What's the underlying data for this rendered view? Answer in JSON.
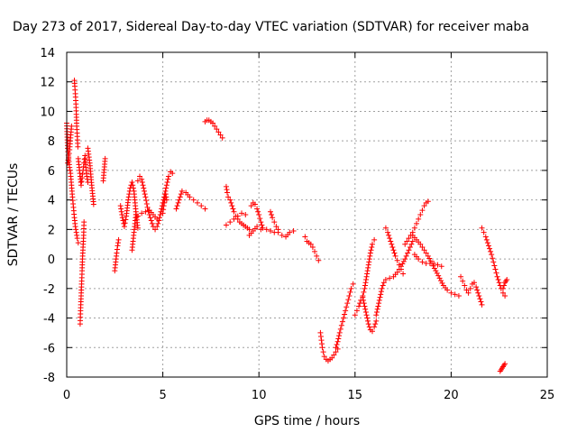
{
  "chart_data": {
    "type": "scatter",
    "title": "Day 273 of 2017, Sidereal Day-to-day VTEC variation (SDTVAR) for receiver maba",
    "xlabel": "GPS time / hours",
    "ylabel": "SDTVAR / TECUs",
    "xlim": [
      0,
      25
    ],
    "ylim": [
      -8,
      14
    ],
    "xticks": [
      0,
      5,
      10,
      15,
      20,
      25
    ],
    "yticks": [
      -8,
      -6,
      -4,
      -2,
      0,
      2,
      4,
      6,
      8,
      10,
      12,
      14
    ],
    "grid": true,
    "marker": "+",
    "color": "#ff0000",
    "series": [
      {
        "name": "SDTVAR",
        "segments": [
          {
            "x": [
              0.0,
              0.05,
              0.1,
              0.15,
              0.2,
              0.25,
              0.3,
              0.35,
              0.4,
              0.45,
              0.5,
              0.55,
              0.6
            ],
            "y": [
              9.2,
              7.5,
              6.8,
              6.2,
              5.8,
              5.0,
              4.2,
              3.5,
              2.8,
              2.2,
              1.8,
              1.4,
              1.1
            ]
          },
          {
            "x": [
              0.05,
              0.1,
              0.15,
              0.2,
              0.25
            ],
            "y": [
              6.5,
              6.9,
              7.4,
              8.2,
              9.0
            ]
          },
          {
            "x": [
              0.4,
              0.42,
              0.45,
              0.48,
              0.5,
              0.52,
              0.55,
              0.58
            ],
            "y": [
              12.1,
              11.7,
              11.2,
              10.5,
              9.8,
              9.0,
              8.3,
              7.6
            ]
          },
          {
            "x": [
              0.6,
              0.65,
              0.7,
              0.75,
              0.8,
              0.85,
              0.9,
              0.95,
              1.0,
              1.05,
              1.1
            ],
            "y": [
              6.8,
              6.2,
              5.6,
              5.0,
              5.5,
              6.0,
              6.5,
              7.0,
              6.2,
              5.6,
              5.2
            ]
          },
          {
            "x": [
              0.7,
              0.72,
              0.75,
              0.78,
              0.8,
              0.82,
              0.85,
              0.88,
              0.9
            ],
            "y": [
              -4.4,
              -3.5,
              -2.5,
              -1.5,
              -0.8,
              0.0,
              0.8,
              1.6,
              2.5
            ]
          },
          {
            "x": [
              1.1,
              1.2,
              1.3,
              1.4
            ],
            "y": [
              7.5,
              6.5,
              5.0,
              3.7
            ]
          },
          {
            "x": [
              1.9,
              2.0
            ],
            "y": [
              5.3,
              6.8
            ]
          },
          {
            "x": [
              2.5,
              2.55,
              2.6,
              2.65,
              2.7
            ],
            "y": [
              -0.8,
              -0.2,
              0.4,
              0.9,
              1.3
            ]
          },
          {
            "x": [
              2.8,
              2.9,
              3.0,
              3.1,
              3.2,
              3.3,
              3.4,
              3.5,
              3.6,
              3.7
            ],
            "y": [
              3.6,
              2.8,
              2.2,
              2.9,
              4.0,
              4.8,
              5.2,
              4.6,
              3.2,
              2.1
            ]
          },
          {
            "x": [
              3.4,
              3.45,
              3.5,
              3.55,
              3.6
            ],
            "y": [
              0.6,
              1.2,
              1.8,
              2.4,
              3.0
            ]
          },
          {
            "x": [
              3.7,
              3.8,
              3.9,
              4.0,
              4.1,
              4.2,
              4.3,
              4.4,
              4.5,
              4.6,
              4.7,
              4.8,
              4.9,
              5.0,
              5.1,
              5.2,
              5.3,
              5.4,
              5.5
            ],
            "y": [
              5.3,
              5.6,
              5.4,
              4.8,
              4.2,
              3.5,
              3.0,
              2.6,
              2.2,
              2.0,
              2.2,
              2.6,
              3.2,
              3.8,
              4.4,
              5.0,
              5.6,
              5.9,
              5.8
            ]
          },
          {
            "x": [
              3.7,
              3.9,
              4.1,
              4.3,
              4.5,
              4.7
            ],
            "y": [
              2.9,
              3.1,
              3.2,
              3.3,
              3.0,
              2.7
            ]
          },
          {
            "x": [
              5.0,
              5.05,
              5.1,
              5.15,
              5.2
            ],
            "y": [
              3.1,
              3.6,
              4.0,
              4.4,
              4.0
            ]
          },
          {
            "x": [
              5.7,
              5.8,
              5.9,
              6.0,
              6.2,
              6.4,
              6.6,
              6.8,
              7.0,
              7.2
            ],
            "y": [
              3.4,
              3.8,
              4.2,
              4.6,
              4.5,
              4.2,
              4.0,
              3.8,
              3.6,
              3.4
            ]
          },
          {
            "x": [
              7.2,
              7.3,
              7.4,
              7.5,
              7.6,
              7.7,
              7.8,
              7.9,
              8.0,
              8.1
            ],
            "y": [
              9.3,
              9.4,
              9.4,
              9.3,
              9.2,
              9.0,
              8.8,
              8.6,
              8.4,
              8.2
            ]
          },
          {
            "x": [
              8.3,
              8.35,
              8.4,
              8.5,
              8.6,
              8.7,
              8.8,
              8.9,
              9.0,
              9.1,
              9.2,
              9.3,
              9.4,
              9.5
            ],
            "y": [
              4.9,
              4.5,
              4.2,
              4.0,
              3.6,
              3.2,
              2.9,
              2.7,
              2.5,
              2.4,
              2.3,
              2.2,
              2.1,
              2.0
            ]
          },
          {
            "x": [
              8.3,
              8.5,
              8.7,
              8.9,
              9.1,
              9.3
            ],
            "y": [
              2.3,
              2.5,
              2.7,
              2.9,
              3.1,
              3.0
            ]
          },
          {
            "x": [
              9.6,
              9.7,
              9.8,
              9.9,
              10.0,
              10.1,
              10.2,
              10.4,
              10.6,
              10.8,
              11.0,
              11.2,
              11.4,
              11.6,
              11.8
            ],
            "y": [
              3.6,
              3.8,
              3.7,
              3.4,
              3.0,
              2.5,
              2.1,
              2.0,
              1.9,
              1.8,
              1.8,
              1.6,
              1.5,
              1.8,
              1.9
            ]
          },
          {
            "x": [
              9.5,
              9.7,
              9.9,
              10.1
            ],
            "y": [
              1.6,
              1.9,
              2.2,
              2.0
            ]
          },
          {
            "x": [
              10.6,
              10.7,
              10.8,
              10.9,
              11.0
            ],
            "y": [
              3.2,
              2.8,
              2.5,
              2.2,
              2.0
            ]
          },
          {
            "x": [
              12.4,
              12.5,
              12.6,
              12.7,
              12.8,
              12.9,
              13.0,
              13.1
            ],
            "y": [
              1.5,
              1.2,
              1.1,
              1.0,
              0.8,
              0.5,
              0.2,
              -0.1
            ]
          },
          {
            "x": [
              13.2,
              13.25,
              13.3,
              13.35,
              13.4,
              13.5,
              13.6,
              13.7,
              13.8,
              13.9,
              14.0,
              14.1
            ],
            "y": [
              -5.0,
              -5.5,
              -6.0,
              -6.3,
              -6.6,
              -6.8,
              -6.9,
              -6.8,
              -6.7,
              -6.5,
              -6.3,
              -6.1
            ]
          },
          {
            "x": [
              14.0,
              14.1,
              14.2,
              14.3,
              14.4,
              14.5,
              14.6,
              14.7,
              14.8,
              14.9
            ],
            "y": [
              -6.0,
              -5.6,
              -5.0,
              -4.5,
              -4.0,
              -3.5,
              -3.0,
              -2.5,
              -2.0,
              -1.7
            ]
          },
          {
            "x": [
              15.0,
              15.1,
              15.2,
              15.3,
              15.4,
              15.5,
              15.6,
              15.7,
              15.8,
              15.9,
              16.0,
              16.1
            ],
            "y": [
              -3.8,
              -3.5,
              -3.2,
              -2.8,
              -2.6,
              -3.2,
              -3.8,
              -4.4,
              -4.8,
              -4.9,
              -4.6,
              -4.2
            ]
          },
          {
            "x": [
              15.4,
              15.5,
              15.6,
              15.7,
              15.8,
              15.9,
              16.0
            ],
            "y": [
              -2.5,
              -2.0,
              -1.2,
              -0.4,
              0.4,
              1.0,
              1.3
            ]
          },
          {
            "x": [
              16.1,
              16.2,
              16.3,
              16.4,
              16.5,
              16.6,
              16.8,
              17.0,
              17.2,
              17.4,
              17.6,
              17.8,
              18.0
            ],
            "y": [
              -3.8,
              -3.2,
              -2.6,
              -2.0,
              -1.6,
              -1.4,
              -1.3,
              -1.2,
              -0.9,
              -0.5,
              0.0,
              0.6,
              1.2
            ]
          },
          {
            "x": [
              16.6,
              16.7,
              16.8,
              16.9,
              17.0,
              17.1,
              17.2,
              17.3,
              17.4,
              17.5
            ],
            "y": [
              2.1,
              1.8,
              1.4,
              1.0,
              0.6,
              0.2,
              -0.1,
              -0.4,
              -0.7,
              -1.0
            ]
          },
          {
            "x": [
              17.6,
              17.7,
              17.8,
              17.9,
              18.0,
              18.1,
              18.2,
              18.3,
              18.4,
              18.5,
              18.6,
              18.7,
              18.8
            ],
            "y": [
              1.0,
              1.2,
              1.4,
              1.6,
              1.8,
              2.1,
              2.4,
              2.7,
              3.0,
              3.3,
              3.6,
              3.8,
              3.9
            ]
          },
          {
            "x": [
              18.0,
              18.2,
              18.4,
              18.6,
              18.8,
              19.0,
              19.2,
              19.4,
              19.6,
              19.8,
              20.0,
              20.2,
              20.4
            ],
            "y": [
              1.6,
              1.3,
              1.0,
              0.6,
              0.2,
              -0.3,
              -0.8,
              -1.3,
              -1.8,
              -2.1,
              -2.3,
              -2.4,
              -2.5
            ]
          },
          {
            "x": [
              18.1,
              18.3,
              18.5,
              18.7,
              18.9,
              19.1,
              19.3,
              19.5
            ],
            "y": [
              0.3,
              0.0,
              -0.2,
              -0.3,
              -0.3,
              -0.3,
              -0.4,
              -0.5
            ]
          },
          {
            "x": [
              20.5,
              20.6,
              20.7,
              20.8,
              20.9,
              21.0,
              21.1,
              21.2,
              21.3,
              21.4,
              21.5,
              21.6
            ],
            "y": [
              -1.2,
              -1.5,
              -1.8,
              -2.1,
              -2.3,
              -2.0,
              -1.7,
              -1.6,
              -1.9,
              -2.3,
              -2.7,
              -3.1
            ]
          },
          {
            "x": [
              21.6,
              21.7,
              21.8,
              21.9,
              22.0,
              22.1,
              22.2,
              22.3,
              22.4,
              22.5,
              22.6,
              22.7,
              22.8
            ],
            "y": [
              2.1,
              1.8,
              1.5,
              1.1,
              0.7,
              0.3,
              -0.2,
              -0.7,
              -1.2,
              -1.6,
              -2.0,
              -2.3,
              -2.5
            ]
          },
          {
            "x": [
              22.7,
              22.75,
              22.8,
              22.85,
              22.9
            ],
            "y": [
              -2.0,
              -1.8,
              -1.6,
              -1.5,
              -1.4
            ]
          },
          {
            "x": [
              22.55,
              22.6,
              22.65,
              22.7,
              22.75,
              22.8
            ],
            "y": [
              -7.6,
              -7.5,
              -7.4,
              -7.3,
              -7.2,
              -7.1
            ]
          }
        ]
      }
    ]
  }
}
